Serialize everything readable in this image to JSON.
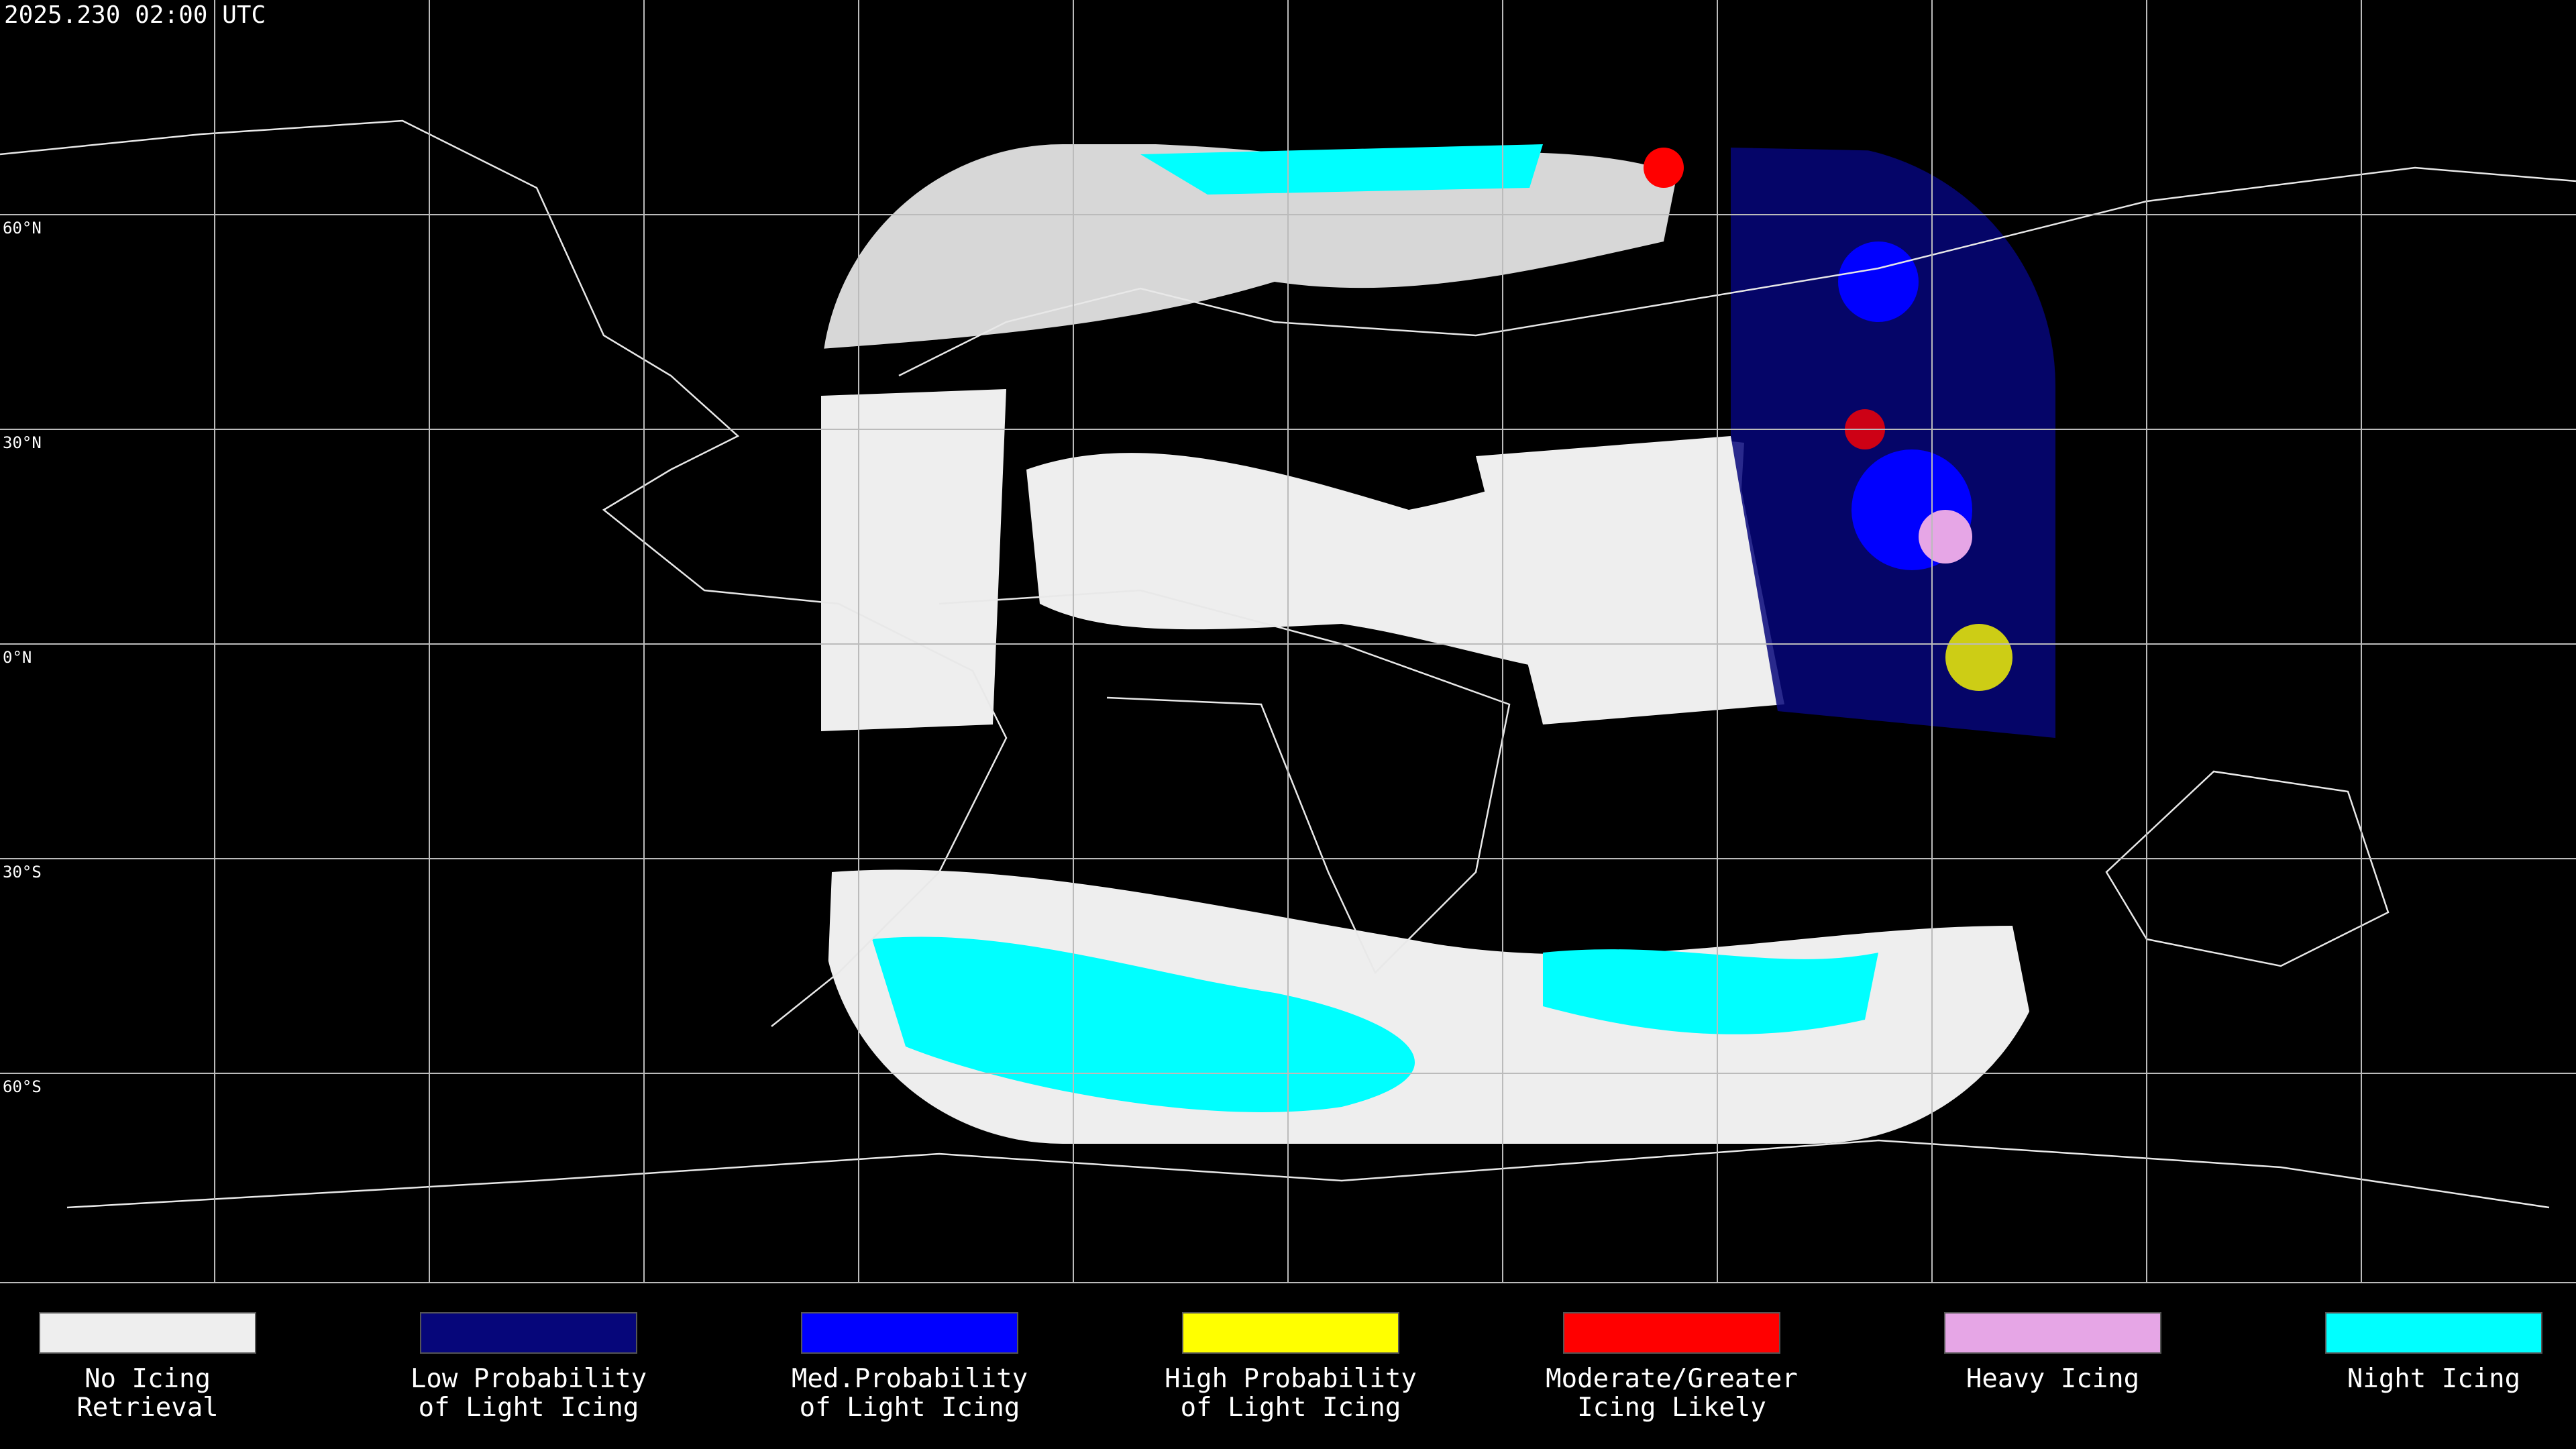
{
  "header": {
    "timestamp": "2025.230 02:00 UTC"
  },
  "map": {
    "latitude_labels": [
      "60°N",
      "30°N",
      "0°N",
      "30°S",
      "60°S"
    ]
  },
  "legend": {
    "items": [
      {
        "lines": [
          "No Icing",
          "Retrieval"
        ],
        "color": "#eeeeee"
      },
      {
        "lines": [
          "Low Probability",
          "of Light Icing"
        ],
        "color": "#06067a"
      },
      {
        "lines": [
          "Med.Probability",
          "of Light Icing"
        ],
        "color": "#0000ff"
      },
      {
        "lines": [
          "High Probability",
          "of Light Icing"
        ],
        "color": "#ffff00"
      },
      {
        "lines": [
          "Moderate/Greater",
          "Icing Likely"
        ],
        "color": "#ff0000"
      },
      {
        "lines": [
          "Heavy Icing"
        ],
        "color": "#e6a6e6"
      },
      {
        "lines": [
          "Night Icing"
        ],
        "color": "#00ffff"
      }
    ]
  }
}
